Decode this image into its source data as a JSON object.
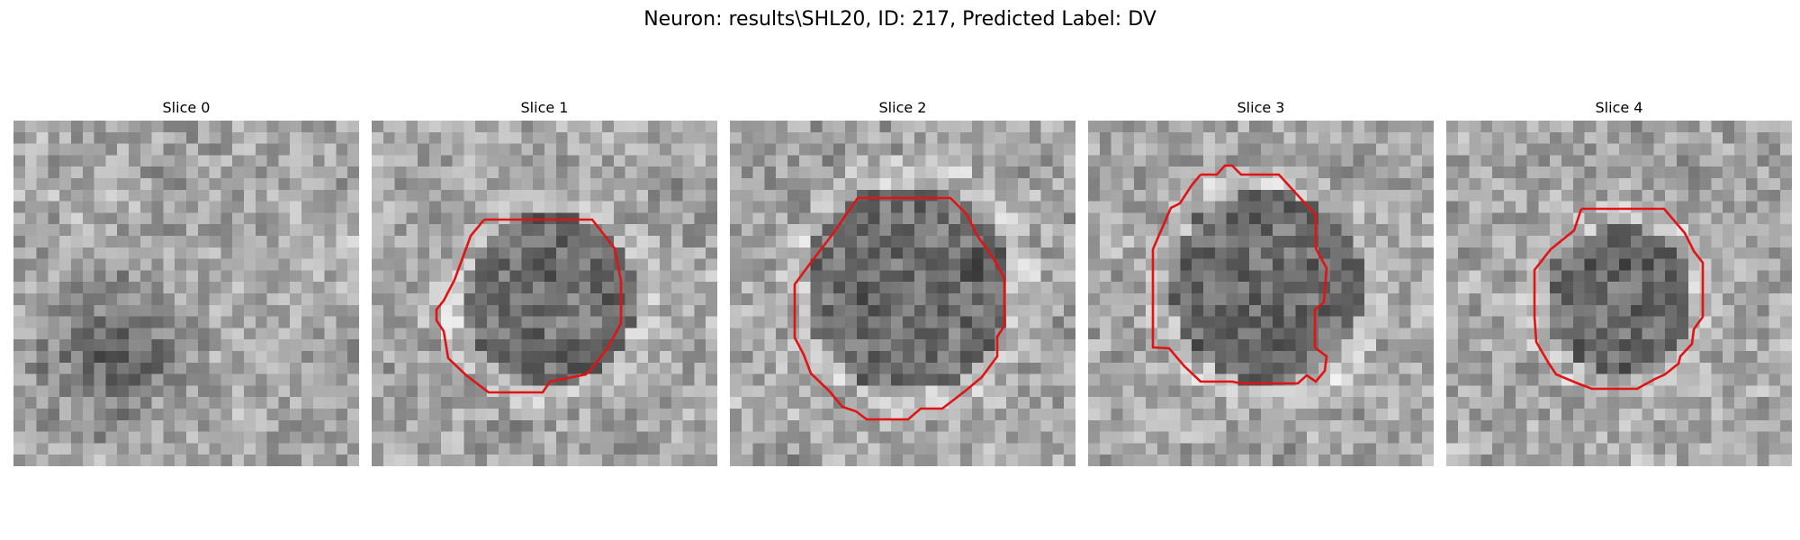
{
  "figure": {
    "title": "Neuron: results\\SHL20, ID: 217, Predicted Label: DV"
  },
  "panels": [
    {
      "title": "Slice 0",
      "has_contour": false
    },
    {
      "title": "Slice 1",
      "has_contour": true
    },
    {
      "title": "Slice 2",
      "has_contour": true
    },
    {
      "title": "Slice 3",
      "has_contour": true
    },
    {
      "title": "Slice 4",
      "has_contour": true
    }
  ],
  "style": {
    "contour_color": "#e01414",
    "colormap": "grayscale"
  }
}
